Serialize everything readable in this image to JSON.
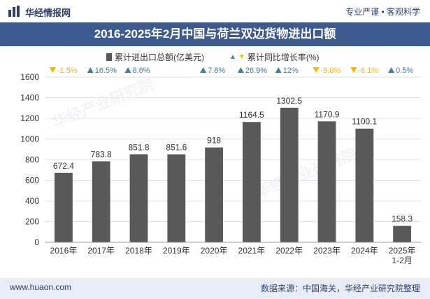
{
  "header": {
    "brand": "华经情报网",
    "slogan": "专业严谨 • 客观科学"
  },
  "title": "2016-2025年2月中国与荷兰双边货物进出口额",
  "legend": {
    "bar_label": "累计进出口总额(亿美元)",
    "line_label": "累计同比增长率(%)"
  },
  "footer": {
    "left": "www.huaon.com",
    "right": "数据来源：中国海关，华经产业研究院整理"
  },
  "colors": {
    "bar": "#595959",
    "up": "#3d7fa6",
    "down": "#f2b705",
    "title_bg": "#3d5a8f"
  },
  "chart_data": {
    "type": "bar",
    "title": "2016-2025年2月中国与荷兰双边货物进出口额",
    "categories": [
      "2016年",
      "2017年",
      "2018年",
      "2019年",
      "2020年",
      "2021年",
      "2022年",
      "2023年",
      "2024年",
      "2025年\n1-2月"
    ],
    "series": [
      {
        "name": "累计进出口总额(亿美元)",
        "values": [
          672.4,
          783.8,
          851.8,
          851.6,
          918,
          1164.5,
          1302.5,
          1170.9,
          1100.1,
          158.3
        ],
        "labels": [
          "672.4",
          "783.8",
          "851.8",
          "851.6",
          "918",
          "1164.5",
          "1302.5",
          "1170.9",
          "1100.1",
          "158.3"
        ]
      },
      {
        "name": "累计同比增长率(%)",
        "values": [
          -1.5,
          16.5,
          8.6,
          null,
          7.8,
          26.9,
          12,
          -9.8,
          -6.1,
          0.5
        ],
        "labels": [
          "-1.5%",
          "16.5%",
          "8.6%",
          "",
          "7.8%",
          "26.9%",
          "12%",
          "-9.8%",
          "-6.1%",
          "0.5%"
        ]
      }
    ],
    "ylim": [
      0,
      1600
    ],
    "yticks": [
      "0",
      "200",
      "400",
      "600",
      "800",
      "1000",
      "1200",
      "1400",
      "1600"
    ],
    "legend_position": "top"
  }
}
